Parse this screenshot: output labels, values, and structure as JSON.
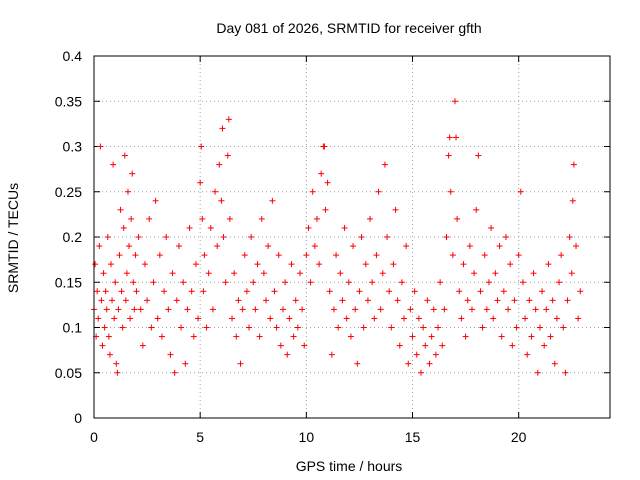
{
  "chart_data": {
    "type": "scatter",
    "title": "Day 081 of 2026, SRMTID for receiver gfth",
    "xlabel": "GPS time / hours",
    "ylabel": "SRMTID / TECUs",
    "xlim": [
      0,
      24.3
    ],
    "ylim": [
      0,
      0.4
    ],
    "xticks": [
      0,
      5,
      10,
      15,
      20
    ],
    "xtick_labels": [
      "0",
      "5",
      "10",
      "15",
      "20"
    ],
    "yticks": [
      0,
      0.05,
      0.1,
      0.15,
      0.2,
      0.25,
      0.3,
      0.35,
      0.4
    ],
    "ytick_labels": [
      "0",
      "0.05",
      "0.1",
      "0.15",
      "0.2",
      "0.25",
      "0.3",
      "0.35",
      "0.4"
    ],
    "grid": true,
    "marker": "+",
    "marker_color": "#ff0000",
    "series": [
      {
        "name": "SRMTID",
        "points": [
          [
            0.0,
            0.12
          ],
          [
            0.05,
            0.17
          ],
          [
            0.1,
            0.09
          ],
          [
            0.15,
            0.14
          ],
          [
            0.2,
            0.11
          ],
          [
            0.25,
            0.19
          ],
          [
            0.3,
            0.3
          ],
          [
            0.35,
            0.13
          ],
          [
            0.4,
            0.08
          ],
          [
            0.45,
            0.16
          ],
          [
            0.5,
            0.1
          ],
          [
            0.55,
            0.14
          ],
          [
            0.6,
            0.12
          ],
          [
            0.65,
            0.2
          ],
          [
            0.7,
            0.09
          ],
          [
            0.75,
            0.07
          ],
          [
            0.8,
            0.17
          ],
          [
            0.85,
            0.13
          ],
          [
            0.9,
            0.28
          ],
          [
            0.95,
            0.11
          ],
          [
            1.0,
            0.15
          ],
          [
            1.05,
            0.06
          ],
          [
            1.1,
            0.05
          ],
          [
            1.15,
            0.12
          ],
          [
            1.2,
            0.18
          ],
          [
            1.25,
            0.23
          ],
          [
            1.3,
            0.14
          ],
          [
            1.35,
            0.1
          ],
          [
            1.4,
            0.21
          ],
          [
            1.45,
            0.29
          ],
          [
            1.5,
            0.13
          ],
          [
            1.55,
            0.16
          ],
          [
            1.6,
            0.25
          ],
          [
            1.65,
            0.19
          ],
          [
            1.7,
            0.11
          ],
          [
            1.75,
            0.22
          ],
          [
            1.8,
            0.27
          ],
          [
            1.85,
            0.15
          ],
          [
            1.9,
            0.12
          ],
          [
            1.95,
            0.18
          ],
          [
            2.0,
            0.14
          ],
          [
            2.1,
            0.2
          ],
          [
            2.2,
            0.12
          ],
          [
            2.3,
            0.08
          ],
          [
            2.4,
            0.17
          ],
          [
            2.5,
            0.13
          ],
          [
            2.6,
            0.22
          ],
          [
            2.7,
            0.1
          ],
          [
            2.8,
            0.15
          ],
          [
            2.9,
            0.24
          ],
          [
            3.0,
            0.11
          ],
          [
            3.1,
            0.18
          ],
          [
            3.2,
            0.09
          ],
          [
            3.3,
            0.14
          ],
          [
            3.4,
            0.2
          ],
          [
            3.5,
            0.12
          ],
          [
            3.6,
            0.07
          ],
          [
            3.7,
            0.16
          ],
          [
            3.8,
            0.05
          ],
          [
            3.9,
            0.13
          ],
          [
            4.0,
            0.19
          ],
          [
            4.1,
            0.1
          ],
          [
            4.2,
            0.15
          ],
          [
            4.3,
            0.06
          ],
          [
            4.4,
            0.12
          ],
          [
            4.5,
            0.21
          ],
          [
            4.6,
            0.14
          ],
          [
            4.7,
            0.09
          ],
          [
            4.8,
            0.17
          ],
          [
            4.9,
            0.11
          ],
          [
            5.0,
            0.26
          ],
          [
            5.05,
            0.3
          ],
          [
            5.1,
            0.22
          ],
          [
            5.15,
            0.14
          ],
          [
            5.2,
            0.18
          ],
          [
            5.3,
            0.1
          ],
          [
            5.4,
            0.16
          ],
          [
            5.5,
            0.21
          ],
          [
            5.6,
            0.12
          ],
          [
            5.7,
            0.25
          ],
          [
            5.8,
            0.19
          ],
          [
            5.9,
            0.28
          ],
          [
            6.0,
            0.24
          ],
          [
            6.05,
            0.32
          ],
          [
            6.1,
            0.2
          ],
          [
            6.2,
            0.15
          ],
          [
            6.3,
            0.29
          ],
          [
            6.35,
            0.33
          ],
          [
            6.4,
            0.22
          ],
          [
            6.5,
            0.11
          ],
          [
            6.6,
            0.16
          ],
          [
            6.7,
            0.09
          ],
          [
            6.8,
            0.13
          ],
          [
            6.9,
            0.06
          ],
          [
            7.0,
            0.12
          ],
          [
            7.1,
            0.18
          ],
          [
            7.2,
            0.14
          ],
          [
            7.3,
            0.1
          ],
          [
            7.4,
            0.2
          ],
          [
            7.5,
            0.15
          ],
          [
            7.6,
            0.12
          ],
          [
            7.7,
            0.17
          ],
          [
            7.8,
            0.09
          ],
          [
            7.9,
            0.22
          ],
          [
            8.0,
            0.16
          ],
          [
            8.1,
            0.13
          ],
          [
            8.2,
            0.19
          ],
          [
            8.3,
            0.11
          ],
          [
            8.4,
            0.24
          ],
          [
            8.5,
            0.14
          ],
          [
            8.6,
            0.1
          ],
          [
            8.7,
            0.18
          ],
          [
            8.8,
            0.08
          ],
          [
            8.9,
            0.12
          ],
          [
            9.0,
            0.15
          ],
          [
            9.1,
            0.07
          ],
          [
            9.2,
            0.11
          ],
          [
            9.3,
            0.17
          ],
          [
            9.4,
            0.09
          ],
          [
            9.5,
            0.13
          ],
          [
            9.6,
            0.1
          ],
          [
            9.7,
            0.16
          ],
          [
            9.8,
            0.12
          ],
          [
            9.9,
            0.08
          ],
          [
            10.0,
            0.18
          ],
          [
            10.1,
            0.21
          ],
          [
            10.2,
            0.15
          ],
          [
            10.3,
            0.25
          ],
          [
            10.4,
            0.19
          ],
          [
            10.5,
            0.22
          ],
          [
            10.6,
            0.17
          ],
          [
            10.7,
            0.27
          ],
          [
            10.8,
            0.3
          ],
          [
            10.85,
            0.3
          ],
          [
            10.9,
            0.23
          ],
          [
            11.0,
            0.26
          ],
          [
            11.1,
            0.14
          ],
          [
            11.2,
            0.07
          ],
          [
            11.3,
            0.12
          ],
          [
            11.4,
            0.18
          ],
          [
            11.5,
            0.1
          ],
          [
            11.6,
            0.16
          ],
          [
            11.7,
            0.13
          ],
          [
            11.8,
            0.21
          ],
          [
            11.9,
            0.11
          ],
          [
            12.0,
            0.15
          ],
          [
            12.1,
            0.09
          ],
          [
            12.2,
            0.19
          ],
          [
            12.3,
            0.12
          ],
          [
            12.4,
            0.06
          ],
          [
            12.5,
            0.14
          ],
          [
            12.6,
            0.2
          ],
          [
            12.7,
            0.1
          ],
          [
            12.8,
            0.17
          ],
          [
            12.9,
            0.13
          ],
          [
            13.0,
            0.22
          ],
          [
            13.1,
            0.15
          ],
          [
            13.2,
            0.11
          ],
          [
            13.3,
            0.18
          ],
          [
            13.4,
            0.25
          ],
          [
            13.5,
            0.12
          ],
          [
            13.6,
            0.16
          ],
          [
            13.7,
            0.28
          ],
          [
            13.8,
            0.2
          ],
          [
            13.9,
            0.14
          ],
          [
            14.0,
            0.1
          ],
          [
            14.1,
            0.17
          ],
          [
            14.2,
            0.23
          ],
          [
            14.3,
            0.13
          ],
          [
            14.4,
            0.08
          ],
          [
            14.5,
            0.15
          ],
          [
            14.6,
            0.11
          ],
          [
            14.7,
            0.19
          ],
          [
            14.8,
            0.06
          ],
          [
            14.9,
            0.12
          ],
          [
            15.0,
            0.09
          ],
          [
            15.1,
            0.14
          ],
          [
            15.2,
            0.07
          ],
          [
            15.3,
            0.11
          ],
          [
            15.4,
            0.05
          ],
          [
            15.5,
            0.1
          ],
          [
            15.6,
            0.08
          ],
          [
            15.7,
            0.13
          ],
          [
            15.8,
            0.06
          ],
          [
            15.9,
            0.09
          ],
          [
            16.0,
            0.12
          ],
          [
            16.1,
            0.07
          ],
          [
            16.2,
            0.1
          ],
          [
            16.3,
            0.15
          ],
          [
            16.4,
            0.08
          ],
          [
            16.5,
            0.12
          ],
          [
            16.6,
            0.2
          ],
          [
            16.7,
            0.29
          ],
          [
            16.75,
            0.31
          ],
          [
            16.8,
            0.25
          ],
          [
            16.9,
            0.18
          ],
          [
            17.0,
            0.35
          ],
          [
            17.05,
            0.31
          ],
          [
            17.1,
            0.22
          ],
          [
            17.2,
            0.14
          ],
          [
            17.3,
            0.11
          ],
          [
            17.4,
            0.17
          ],
          [
            17.5,
            0.09
          ],
          [
            17.6,
            0.13
          ],
          [
            17.7,
            0.19
          ],
          [
            17.8,
            0.12
          ],
          [
            17.9,
            0.16
          ],
          [
            18.0,
            0.23
          ],
          [
            18.1,
            0.29
          ],
          [
            18.2,
            0.14
          ],
          [
            18.3,
            0.1
          ],
          [
            18.4,
            0.18
          ],
          [
            18.5,
            0.12
          ],
          [
            18.6,
            0.15
          ],
          [
            18.7,
            0.21
          ],
          [
            18.8,
            0.11
          ],
          [
            18.9,
            0.16
          ],
          [
            19.0,
            0.13
          ],
          [
            19.1,
            0.19
          ],
          [
            19.2,
            0.09
          ],
          [
            19.3,
            0.14
          ],
          [
            19.4,
            0.2
          ],
          [
            19.5,
            0.12
          ],
          [
            19.6,
            0.17
          ],
          [
            19.7,
            0.08
          ],
          [
            19.8,
            0.13
          ],
          [
            19.9,
            0.1
          ],
          [
            20.0,
            0.18
          ],
          [
            20.1,
            0.25
          ],
          [
            20.2,
            0.15
          ],
          [
            20.3,
            0.11
          ],
          [
            20.4,
            0.07
          ],
          [
            20.5,
            0.13
          ],
          [
            20.6,
            0.09
          ],
          [
            20.7,
            0.16
          ],
          [
            20.8,
            0.12
          ],
          [
            20.9,
            0.05
          ],
          [
            21.0,
            0.1
          ],
          [
            21.1,
            0.14
          ],
          [
            21.2,
            0.08
          ],
          [
            21.3,
            0.12
          ],
          [
            21.4,
            0.17
          ],
          [
            21.5,
            0.09
          ],
          [
            21.6,
            0.13
          ],
          [
            21.7,
            0.06
          ],
          [
            21.8,
            0.11
          ],
          [
            21.9,
            0.15
          ],
          [
            22.0,
            0.18
          ],
          [
            22.1,
            0.1
          ],
          [
            22.2,
            0.05
          ],
          [
            22.3,
            0.13
          ],
          [
            22.4,
            0.2
          ],
          [
            22.5,
            0.16
          ],
          [
            22.55,
            0.24
          ],
          [
            22.6,
            0.28
          ],
          [
            22.7,
            0.19
          ],
          [
            22.8,
            0.11
          ],
          [
            22.9,
            0.14
          ]
        ]
      }
    ]
  }
}
